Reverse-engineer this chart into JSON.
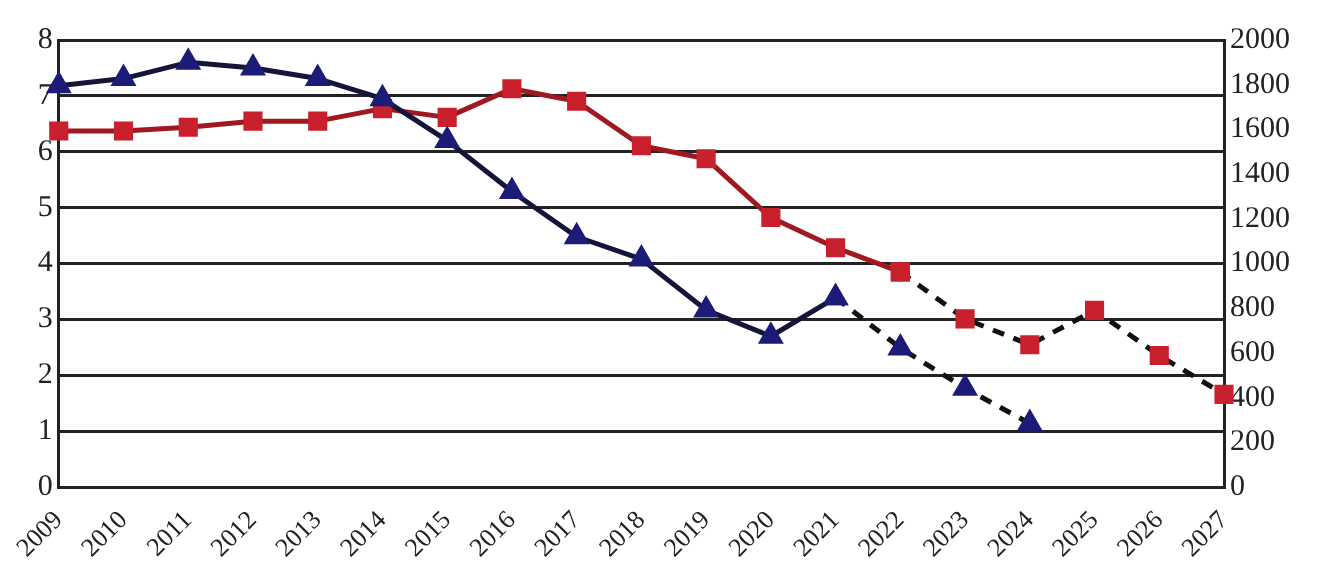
{
  "chart_data": {
    "type": "line",
    "categories": [
      "2009",
      "2010",
      "2011",
      "2012",
      "2013",
      "2014",
      "2015",
      "2016",
      "2017",
      "2018",
      "2019",
      "2020",
      "2021",
      "2022",
      "2023",
      "2024",
      "2025",
      "2026",
      "2027"
    ],
    "series": [
      {
        "color": "#1c1c78",
        "marker": "triangle",
        "line_style": "solid",
        "values": [
          7.18,
          7.31,
          7.6,
          7.5,
          7.31,
          6.95,
          6.2,
          5.29,
          4.48,
          4.08,
          3.17,
          2.7,
          3.39,
          null,
          null,
          null,
          null,
          null,
          null
        ]
      },
      {
        "color": "#1c1c78",
        "marker": "triangle",
        "line_style": "dashed",
        "values": [
          null,
          null,
          null,
          null,
          null,
          null,
          null,
          null,
          null,
          null,
          null,
          null,
          3.39,
          2.49,
          1.77,
          1.14,
          null,
          null,
          null
        ]
      },
      {
        "color": "#c8202c",
        "marker": "square",
        "line_style": "solid",
        "axis": "y2",
        "values": [
          1593,
          1593,
          1610,
          1637,
          1637,
          1693,
          1654,
          1782,
          1726,
          1527,
          1469,
          1206,
          1071,
          963,
          null,
          null,
          null,
          null,
          null
        ]
      },
      {
        "color": "#c8202c",
        "marker": "square",
        "line_style": "dashed",
        "axis": "y2",
        "values": [
          null,
          null,
          null,
          null,
          null,
          null,
          null,
          null,
          null,
          null,
          null,
          null,
          null,
          963,
          753,
          637,
          791,
          589,
          415
        ]
      }
    ],
    "ylim": [
      0,
      8
    ],
    "yticks": [
      0,
      1,
      2,
      3,
      4,
      5,
      6,
      7,
      8
    ],
    "y2lim": [
      0,
      2000
    ],
    "y2ticks": [
      0,
      200,
      400,
      600,
      800,
      1000,
      1200,
      1400,
      1600,
      1800,
      2000
    ],
    "grid": "y",
    "legend": false
  }
}
